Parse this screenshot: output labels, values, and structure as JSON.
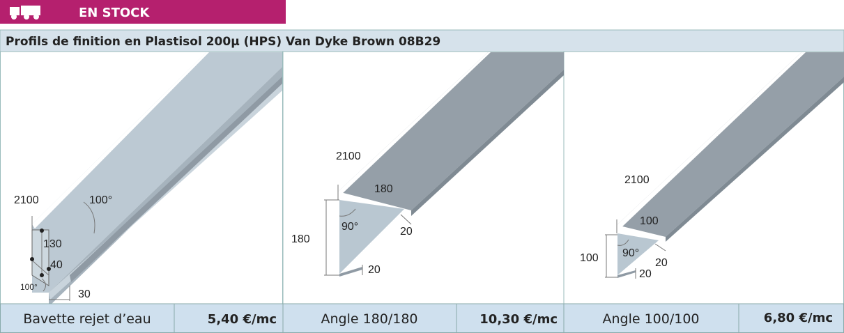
{
  "header": {
    "badge": "EN STOCK",
    "title": "Profils de finition en Plastisol 200µ (HPS) Van Dyke Brown 08B29"
  },
  "products": [
    {
      "name": "Bavette rejet d’eau",
      "price": "5,40 €/mc",
      "dimensions": [
        "2100",
        "100°",
        "130",
        "40",
        "100°",
        "30"
      ]
    },
    {
      "name": "Angle 180/180",
      "price": "10,30 €/mc",
      "dimensions": [
        "2100",
        "180",
        "180",
        "90°",
        "20",
        "20"
      ]
    },
    {
      "name": "Angle 100/100",
      "price": "6,80 €/mc",
      "dimensions": [
        "2100",
        "100",
        "100",
        "90°",
        "20",
        "20"
      ]
    }
  ]
}
